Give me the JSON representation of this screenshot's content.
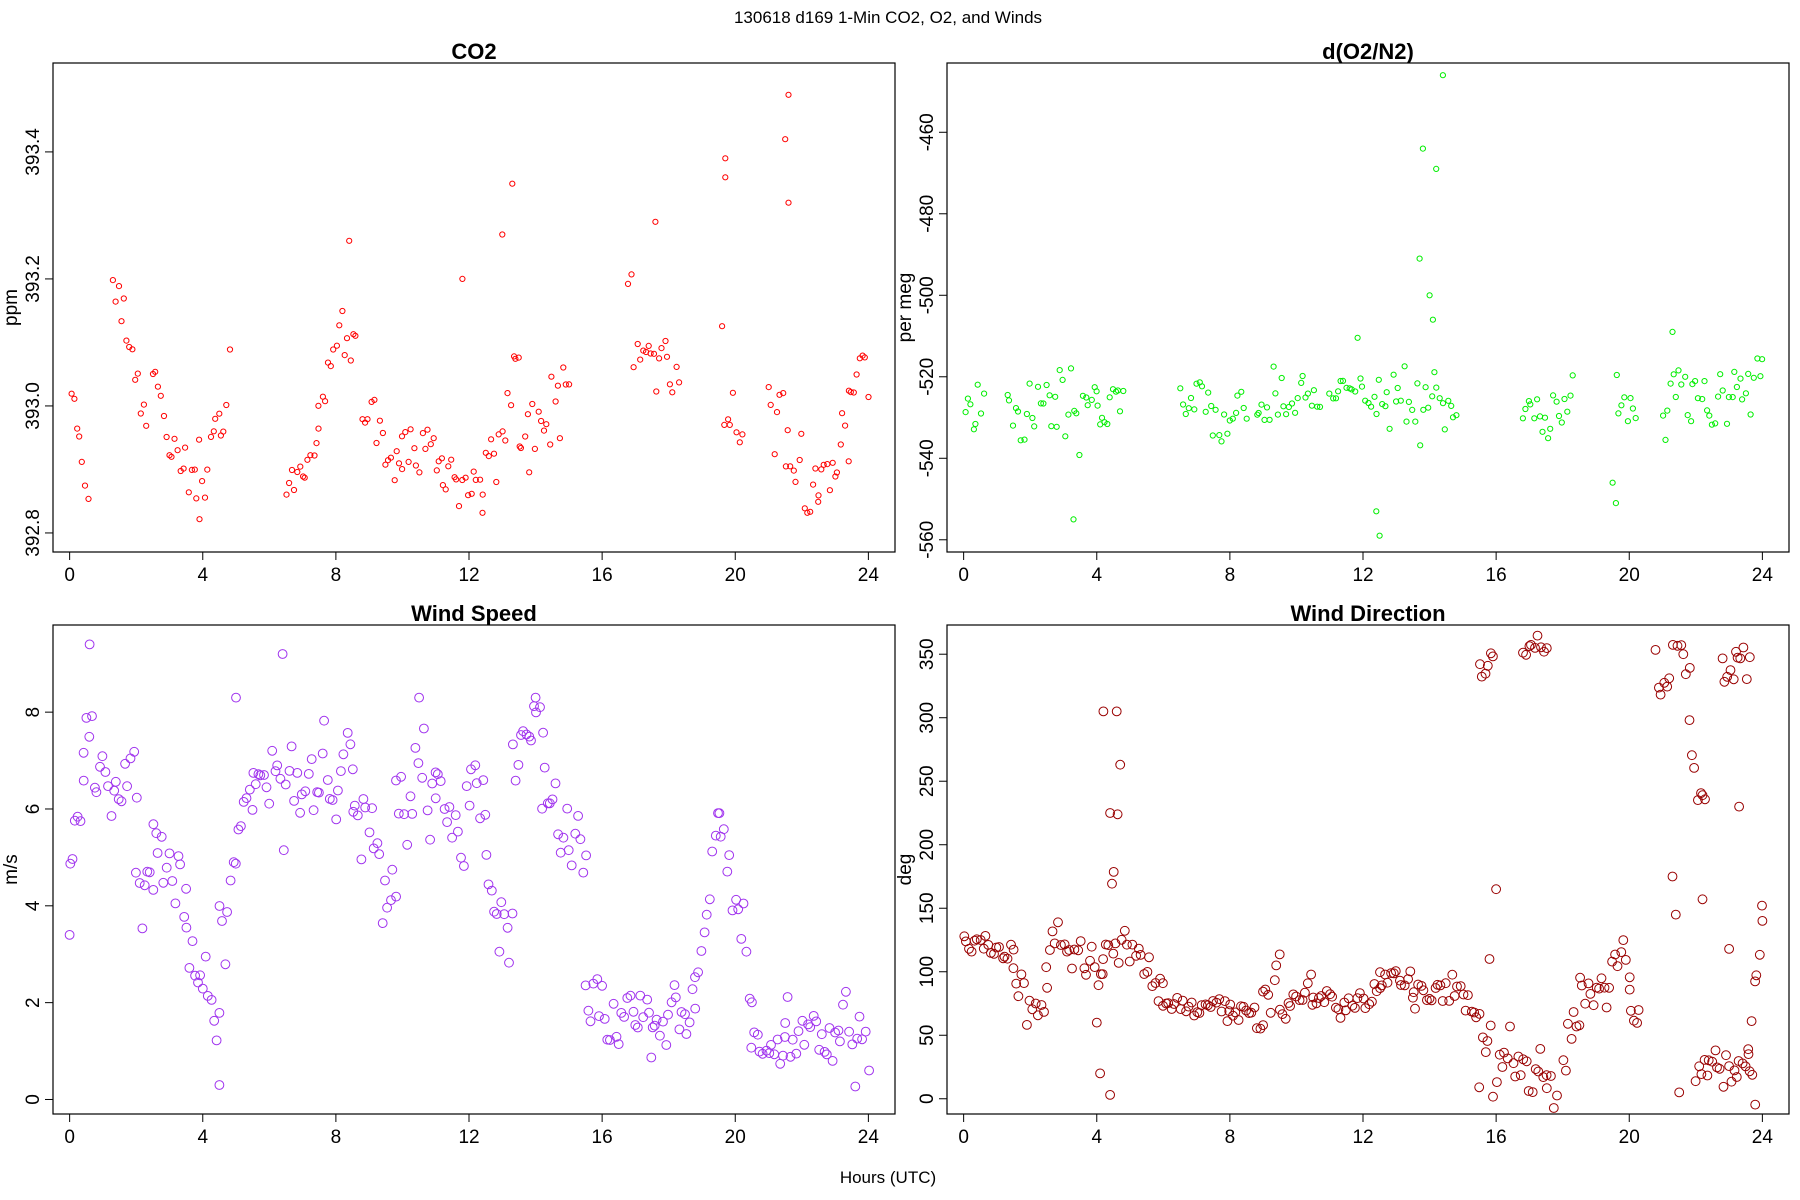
{
  "figure": {
    "suptitle": "130618   d169   1-Min CO2, O2, and Winds",
    "xlabel": "Hours (UTC)"
  },
  "chart_data": [
    {
      "type": "scatter",
      "title": "CO2",
      "ylabel": "ppm",
      "xlabel": "",
      "color": "#ff0000",
      "xlim": [
        -0.5,
        24.8
      ],
      "ylim": [
        392.77,
        393.54
      ],
      "xticks": [
        0,
        4,
        8,
        12,
        16,
        20,
        24
      ],
      "yticks": [
        392.8,
        393.0,
        393.2,
        393.4
      ],
      "ytick_labels": [
        "392.8",
        "393.0",
        "393.2",
        "393.4"
      ],
      "segments": [
        {
          "x": [
            0.05,
            0.55
          ],
          "y": [
            393.03,
            392.85
          ],
          "noise": 0.02
        },
        {
          "x": [
            1.3,
            2.3
          ],
          "y": [
            393.2,
            393.0
          ],
          "noise": 0.03
        },
        {
          "x": [
            2.5,
            3.9
          ],
          "y": [
            393.03,
            392.84
          ],
          "noise": 0.04
        },
        {
          "x": [
            3.9,
            4.8
          ],
          "y": [
            392.9,
            393.03
          ],
          "noise": 0.05
        },
        {
          "x": [
            6.5,
            7.5
          ],
          "y": [
            392.87,
            392.96
          ],
          "noise": 0.03
        },
        {
          "x": [
            7.5,
            8.6
          ],
          "y": [
            392.96,
            393.12
          ],
          "noise": 0.05
        },
        {
          "x": [
            8.8,
            10.0
          ],
          "y": [
            392.98,
            392.9
          ],
          "noise": 0.03
        },
        {
          "x": [
            10.0,
            11.2
          ],
          "y": [
            392.95,
            392.93
          ],
          "noise": 0.04
        },
        {
          "x": [
            11.2,
            12.4
          ],
          "y": [
            392.88,
            392.85
          ],
          "noise": 0.04
        },
        {
          "x": [
            12.4,
            13.5
          ],
          "y": [
            392.9,
            393.1
          ],
          "noise": 0.06
        },
        {
          "x": [
            13.5,
            15.0
          ],
          "y": [
            392.96,
            393.05
          ],
          "noise": 0.05
        },
        {
          "x": [
            16.8,
            18.3
          ],
          "y": [
            393.12,
            393.02
          ],
          "noise": 0.05
        },
        {
          "x": [
            19.6,
            20.2
          ],
          "y": [
            393.05,
            392.95
          ],
          "noise": 0.07
        },
        {
          "x": [
            21.0,
            22.5
          ],
          "y": [
            393.05,
            392.88
          ],
          "noise": 0.06
        },
        {
          "x": [
            22.5,
            23.4
          ],
          "y": [
            392.88,
            392.93
          ],
          "noise": 0.04
        },
        {
          "x": [
            23.4,
            24.0
          ],
          "y": [
            393.0,
            393.12
          ],
          "noise": 0.05
        }
      ],
      "outliers": [
        [
          13.3,
          393.35
        ],
        [
          13.0,
          393.27
        ],
        [
          21.6,
          393.49
        ],
        [
          21.5,
          393.42
        ],
        [
          21.6,
          393.32
        ],
        [
          19.7,
          393.39
        ],
        [
          19.7,
          393.36
        ],
        [
          8.4,
          393.26
        ],
        [
          11.8,
          393.2
        ],
        [
          17.6,
          393.29
        ]
      ]
    },
    {
      "type": "scatter",
      "title": "d(O2/N2)",
      "ylabel": "per meg",
      "xlabel": "",
      "color": "#00ee00",
      "xlim": [
        -0.5,
        24.8
      ],
      "ylim": [
        -563,
        -443
      ],
      "xticks": [
        0,
        4,
        8,
        12,
        16,
        20,
        24
      ],
      "yticks": [
        -560,
        -540,
        -520,
        -500,
        -480,
        -460
      ],
      "ytick_labels": [
        "-560",
        "-540",
        "-520",
        "-500",
        "-480",
        "-460"
      ],
      "segments": [
        {
          "x": [
            0.05,
            0.6
          ],
          "y": [
            -527,
            -527
          ],
          "noise": 5
        },
        {
          "x": [
            1.3,
            4.0
          ],
          "y": [
            -527,
            -528
          ],
          "noise": 6
        },
        {
          "x": [
            4.0,
            4.8
          ],
          "y": [
            -526,
            -526
          ],
          "noise": 3
        },
        {
          "x": [
            6.5,
            8.5
          ],
          "y": [
            -525,
            -527
          ],
          "noise": 6
        },
        {
          "x": [
            8.8,
            10.7
          ],
          "y": [
            -528,
            -527
          ],
          "noise": 5
        },
        {
          "x": [
            11.0,
            14.8
          ],
          "y": [
            -527,
            -524
          ],
          "noise": 6
        },
        {
          "x": [
            16.8,
            18.3
          ],
          "y": [
            -527,
            -526
          ],
          "noise": 4
        },
        {
          "x": [
            19.6,
            20.2
          ],
          "y": [
            -526,
            -528
          ],
          "noise": 6
        },
        {
          "x": [
            21.0,
            24.0
          ],
          "y": [
            -527,
            -524
          ],
          "noise": 7
        }
      ],
      "outliers": [
        [
          14.4,
          -446
        ],
        [
          13.8,
          -464
        ],
        [
          14.2,
          -469
        ],
        [
          13.7,
          -491
        ],
        [
          14.0,
          -500
        ],
        [
          14.1,
          -506
        ],
        [
          12.5,
          -559
        ],
        [
          12.4,
          -553
        ],
        [
          3.3,
          -555
        ],
        [
          19.6,
          -551
        ],
        [
          19.5,
          -546
        ],
        [
          21.3,
          -509
        ]
      ]
    },
    {
      "type": "scatter",
      "title": "Wind Speed",
      "ylabel": "m/s",
      "xlabel": "",
      "color": "#a033ee",
      "xlim": [
        -0.5,
        24.8
      ],
      "ylim": [
        -0.3,
        9.8
      ],
      "xticks": [
        0,
        4,
        8,
        12,
        16,
        20,
        24
      ],
      "yticks": [
        0,
        2,
        4,
        6,
        8
      ],
      "ytick_labels": [
        "0",
        "2",
        "4",
        "6",
        "8"
      ],
      "segments": [
        {
          "x": [
            0.0,
            0.4
          ],
          "y": [
            4.2,
            6.5
          ],
          "noise": 0.6
        },
        {
          "x": [
            0.4,
            2.0
          ],
          "y": [
            7.0,
            6.2
          ],
          "noise": 0.7
        },
        {
          "x": [
            2.0,
            2.5
          ],
          "y": [
            5.0,
            3.5
          ],
          "noise": 0.8
        },
        {
          "x": [
            2.5,
            3.5
          ],
          "y": [
            4.0,
            5.0
          ],
          "noise": 0.9
        },
        {
          "x": [
            3.5,
            4.5
          ],
          "y": [
            3.5,
            1.2
          ],
          "noise": 0.7
        },
        {
          "x": [
            4.5,
            5.5
          ],
          "y": [
            3.0,
            6.8
          ],
          "noise": 0.9
        },
        {
          "x": [
            5.5,
            8.5
          ],
          "y": [
            6.5,
            7.2
          ],
          "noise": 0.8
        },
        {
          "x": [
            8.5,
            9.8
          ],
          "y": [
            5.5,
            4.0
          ],
          "noise": 0.8
        },
        {
          "x": [
            9.8,
            11.0
          ],
          "y": [
            6.5,
            7.0
          ],
          "noise": 0.7
        },
        {
          "x": [
            11.0,
            12.5
          ],
          "y": [
            6.3,
            6.0
          ],
          "noise": 0.7
        },
        {
          "x": [
            12.5,
            13.3
          ],
          "y": [
            5.0,
            3.3
          ],
          "noise": 0.6
        },
        {
          "x": [
            13.3,
            14.2
          ],
          "y": [
            6.8,
            7.2
          ],
          "noise": 0.6
        },
        {
          "x": [
            14.2,
            15.5
          ],
          "y": [
            6.0,
            4.5
          ],
          "noise": 0.8
        },
        {
          "x": [
            15.5,
            17.5
          ],
          "y": [
            2.0,
            1.4
          ],
          "noise": 0.6
        },
        {
          "x": [
            17.5,
            18.8
          ],
          "y": [
            1.6,
            2.0
          ],
          "noise": 0.5
        },
        {
          "x": [
            18.8,
            19.5
          ],
          "y": [
            2.5,
            6.0
          ],
          "noise": 0.5
        },
        {
          "x": [
            19.5,
            20.5
          ],
          "y": [
            5.5,
            2.5
          ],
          "noise": 0.7
        },
        {
          "x": [
            20.5,
            21.5
          ],
          "y": [
            1.4,
            0.5
          ],
          "noise": 0.4
        },
        {
          "x": [
            21.5,
            24.0
          ],
          "y": [
            1.3,
            1.5
          ],
          "noise": 0.6
        }
      ],
      "outliers": [
        [
          0.6,
          9.4
        ],
        [
          6.4,
          9.2
        ],
        [
          5.0,
          8.3
        ],
        [
          10.5,
          8.3
        ],
        [
          14.0,
          8.3
        ],
        [
          0.0,
          3.4
        ],
        [
          4.5,
          0.3
        ]
      ]
    },
    {
      "type": "scatter",
      "title": "Wind Direction",
      "ylabel": "deg",
      "xlabel": "",
      "color": "#990000",
      "xlim": [
        -0.5,
        24.8
      ],
      "ylim": [
        -12,
        373
      ],
      "xticks": [
        0,
        4,
        8,
        12,
        16,
        20,
        24
      ],
      "yticks": [
        0,
        50,
        100,
        150,
        200,
        250,
        300,
        350
      ],
      "ytick_labels": [
        "0",
        "50",
        "100",
        "150",
        "200",
        "250",
        "300",
        "350"
      ],
      "segments": [
        {
          "x": [
            0.0,
            1.5
          ],
          "y": [
            118,
            115
          ],
          "noise": 10
        },
        {
          "x": [
            1.5,
            2.5
          ],
          "y": [
            100,
            70
          ],
          "noise": 15
        },
        {
          "x": [
            2.5,
            4.2
          ],
          "y": [
            105,
            110
          ],
          "noise": 15
        },
        {
          "x": [
            4.2,
            4.7
          ],
          "y": [
            120,
            250
          ],
          "noise": 50
        },
        {
          "x": [
            4.5,
            6.0
          ],
          "y": [
            125,
            85
          ],
          "noise": 15
        },
        {
          "x": [
            6.0,
            8.0
          ],
          "y": [
            72,
            70
          ],
          "noise": 6
        },
        {
          "x": [
            8.0,
            9.0
          ],
          "y": [
            65,
            65
          ],
          "noise": 6
        },
        {
          "x": [
            9.0,
            9.5
          ],
          "y": [
            80,
            110
          ],
          "noise": 10
        },
        {
          "x": [
            9.5,
            10.5
          ],
          "y": [
            65,
            85
          ],
          "noise": 8
        },
        {
          "x": [
            10.5,
            12.5
          ],
          "y": [
            75,
            82
          ],
          "noise": 8
        },
        {
          "x": [
            12.5,
            13.5
          ],
          "y": [
            90,
            100
          ],
          "noise": 10
        },
        {
          "x": [
            13.5,
            15.5
          ],
          "y": [
            85,
            70
          ],
          "noise": 10
        },
        {
          "x": [
            15.5,
            15.9
          ],
          "y": [
            345,
            345
          ],
          "noise": 10
        },
        {
          "x": [
            15.5,
            17.5
          ],
          "y": [
            40,
            15
          ],
          "noise": 20
        },
        {
          "x": [
            16.8,
            17.5
          ],
          "y": [
            352,
            352
          ],
          "noise": 6
        },
        {
          "x": [
            17.5,
            18.5
          ],
          "y": [
            30,
            60
          ],
          "noise": 25
        },
        {
          "x": [
            18.5,
            20.0
          ],
          "y": [
            85,
            100
          ],
          "noise": 12
        },
        {
          "x": [
            20.0,
            20.3
          ],
          "y": [
            80,
            60
          ],
          "noise": 20
        },
        {
          "x": [
            20.8,
            21.8
          ],
          "y": [
            320,
            330
          ],
          "noise": 25
        },
        {
          "x": [
            21.8,
            22.3
          ],
          "y": [
            280,
            260
          ],
          "noise": 25
        },
        {
          "x": [
            22.0,
            23.8
          ],
          "y": [
            25,
            20
          ],
          "noise": 15
        },
        {
          "x": [
            22.8,
            23.6
          ],
          "y": [
            340,
            340
          ],
          "noise": 15
        },
        {
          "x": [
            23.6,
            24.0
          ],
          "y": [
            40,
            140
          ],
          "noise": 15
        }
      ],
      "outliers": [
        [
          4.2,
          305
        ],
        [
          4.6,
          305
        ],
        [
          4.4,
          225
        ],
        [
          4.0,
          60
        ],
        [
          4.1,
          20
        ],
        [
          4.4,
          3
        ],
        [
          16.0,
          165
        ],
        [
          15.8,
          110
        ],
        [
          21.3,
          175
        ],
        [
          21.4,
          145
        ],
        [
          22.2,
          157
        ],
        [
          23.0,
          118
        ],
        [
          24.0,
          140
        ],
        [
          23.3,
          230
        ],
        [
          21.5,
          5
        ]
      ]
    }
  ]
}
